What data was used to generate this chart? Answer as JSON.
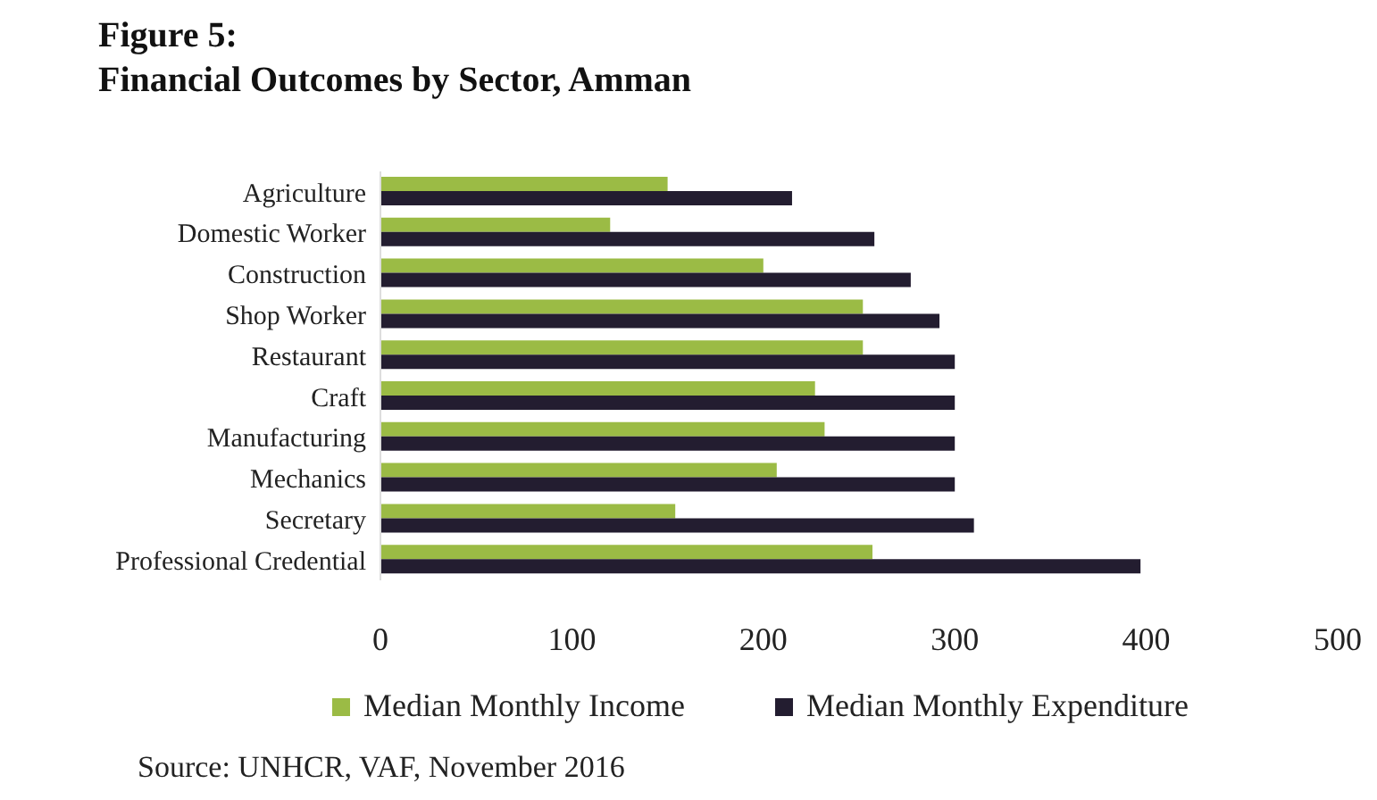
{
  "chart_data": {
    "type": "bar",
    "orientation": "horizontal",
    "title": "Figure 5:",
    "subtitle": "Financial Outcomes by Sector, Amman",
    "categories": [
      "Agriculture",
      "Domestic Worker",
      "Construction",
      "Shop Worker",
      "Restaurant",
      "Craft",
      "Manufacturing",
      "Mechanics",
      "Secretary",
      "Professional Credential"
    ],
    "series": [
      {
        "name": "Median Monthly Income",
        "color": "#9bbb45",
        "values": [
          150,
          120,
          200,
          252,
          252,
          227,
          232,
          207,
          154,
          257
        ]
      },
      {
        "name": "Median Monthly Expenditure",
        "color": "#231d30",
        "values": [
          215,
          258,
          277,
          292,
          300,
          300,
          300,
          300,
          310,
          397
        ]
      }
    ],
    "xlim": [
      0,
      500
    ],
    "xticks": [
      0,
      100,
      200,
      300,
      400,
      500
    ],
    "legend": "bottom",
    "annotations": [
      "Source: UNHCR, VAF, November 2016"
    ]
  }
}
